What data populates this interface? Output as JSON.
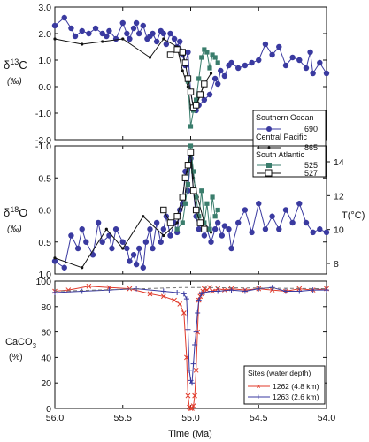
{
  "chart_data": [
    {
      "type": "line",
      "panel": "top",
      "ylabel_prefix": "δ",
      "ylabel_sup": "13",
      "ylabel_suffix": "C",
      "units": "(‰)",
      "ylim": [
        -2.0,
        3.0
      ],
      "yticks": [
        "3.0",
        "2.0",
        "1.0",
        "0.0",
        "-1.0",
        "-2.0"
      ],
      "legend": {
        "groups": [
          {
            "title": "Southern Ocean",
            "entries": [
              {
                "label": "690",
                "series": "690"
              }
            ]
          },
          {
            "title": "Central Pacific",
            "entries": [
              {
                "label": "865",
                "series": "865"
              }
            ]
          },
          {
            "title": "South Atlantic",
            "entries": [
              {
                "label": "525",
                "series": "525"
              },
              {
                "label": "527",
                "series": "527"
              }
            ]
          }
        ],
        "placement": "bottom-right"
      },
      "series": [
        {
          "name": "690",
          "color": "#3a3aa0",
          "marker": "circle",
          "x": [
            56.0,
            55.93,
            55.88,
            55.85,
            55.8,
            55.75,
            55.7,
            55.65,
            55.62,
            55.6,
            55.55,
            55.5,
            55.47,
            55.45,
            55.42,
            55.4,
            55.38,
            55.35,
            55.32,
            55.3,
            55.28,
            55.25,
            55.22,
            55.2,
            55.18,
            55.15,
            55.12,
            55.1,
            55.08,
            55.06,
            55.04,
            55.02,
            55.0,
            54.98,
            54.96,
            54.94,
            54.9,
            54.86,
            54.82,
            54.8,
            54.78,
            54.75,
            54.72,
            54.7,
            54.65,
            54.6,
            54.55,
            54.5,
            54.45,
            54.4,
            54.35,
            54.3,
            54.25,
            54.2,
            54.15,
            54.12,
            54.1,
            54.05,
            54.0
          ],
          "y": [
            2.3,
            2.6,
            2.2,
            1.9,
            2.1,
            2.0,
            2.2,
            2.0,
            1.9,
            2.1,
            1.8,
            2.4,
            2.0,
            1.8,
            2.2,
            2.4,
            2.0,
            2.3,
            1.8,
            1.9,
            2.0,
            1.7,
            2.1,
            2.0,
            1.6,
            2.0,
            1.8,
            1.5,
            1.7,
            1.2,
            0.8,
            1.3,
            -0.2,
            -0.8,
            -0.9,
            -0.7,
            -0.5,
            -0.3,
            0.3,
            0.1,
            0.6,
            0.4,
            0.8,
            0.9,
            0.7,
            0.8,
            0.9,
            1.0,
            1.6,
            1.2,
            1.5,
            0.8,
            1.1,
            1.0,
            0.7,
            1.3,
            0.5,
            0.9,
            0.5
          ]
        },
        {
          "name": "865",
          "color": "#111111",
          "marker": "dot",
          "x": [
            56.0,
            55.8,
            55.65,
            55.5,
            55.3,
            55.2,
            55.1,
            55.06,
            55.02,
            55.0,
            54.98,
            54.95,
            54.9,
            54.85
          ],
          "y": [
            1.8,
            1.6,
            1.7,
            1.8,
            1.1,
            1.8,
            1.5,
            0.6,
            0.0,
            -0.8,
            -0.9,
            -0.6,
            0.1,
            0.5
          ]
        },
        {
          "name": "525",
          "color": "#3a7d6c",
          "marker": "square",
          "x": [
            55.02,
            55.0,
            54.98,
            54.96,
            54.94,
            54.92,
            54.9,
            54.88,
            54.86,
            54.84,
            54.82,
            54.8
          ],
          "y": [
            0.2,
            -1.5,
            -0.9,
            -0.5,
            0.3,
            1.1,
            1.4,
            1.3,
            0.7,
            1.2,
            1.1,
            0.9
          ]
        },
        {
          "name": "527",
          "color": "#111111",
          "marker": "open-square",
          "x": [
            55.15,
            55.1,
            55.06,
            55.04,
            55.02,
            55.0,
            54.98,
            54.96,
            54.93,
            54.9
          ],
          "y": [
            1.2,
            1.4,
            1.3,
            0.9,
            0.3,
            -0.2,
            -0.8,
            -0.7,
            -0.3,
            0.1
          ]
        }
      ]
    },
    {
      "type": "line",
      "panel": "middle",
      "ylabel_prefix": "δ",
      "ylabel_sup": "18",
      "ylabel_suffix": "O",
      "units": "(‰)",
      "ylim": [
        -1.0,
        1.0
      ],
      "y_inverted": true,
      "yticks": [
        "-1.0",
        "-0.5",
        "0.0",
        "0.5",
        "1.0"
      ],
      "right_axis": {
        "label": "T(°C)",
        "ticks": [
          "14",
          "12",
          "10",
          "8"
        ]
      },
      "series": [
        {
          "name": "690",
          "color": "#3a3aa0",
          "marker": "circle",
          "x": [
            56.0,
            55.93,
            55.88,
            55.83,
            55.8,
            55.77,
            55.72,
            55.68,
            55.65,
            55.6,
            55.58,
            55.55,
            55.5,
            55.47,
            55.45,
            55.42,
            55.4,
            55.38,
            55.35,
            55.33,
            55.3,
            55.28,
            55.25,
            55.22,
            55.2,
            55.18,
            55.15,
            55.12,
            55.1,
            55.08,
            55.06,
            55.04,
            55.02,
            55.0,
            54.98,
            54.96,
            54.94,
            54.92,
            54.9,
            54.88,
            54.85,
            54.82,
            54.8,
            54.77,
            54.75,
            54.72,
            54.7,
            54.65,
            54.6,
            54.55,
            54.5,
            54.45,
            54.4,
            54.35,
            54.3,
            54.25,
            54.2,
            54.15,
            54.1,
            54.05,
            54.0
          ],
          "y": [
            0.8,
            0.9,
            0.4,
            0.6,
            0.3,
            0.5,
            0.7,
            0.2,
            0.5,
            0.4,
            0.6,
            0.3,
            0.5,
            0.6,
            0.8,
            0.7,
            0.85,
            0.6,
            0.9,
            0.5,
            0.3,
            0.6,
            0.2,
            0.5,
            0.3,
            0.1,
            0.4,
            0.2,
            0.35,
            0.0,
            -0.1,
            -0.6,
            -0.3,
            -0.8,
            -0.3,
            0.1,
            0.3,
            0.2,
            0.4,
            0.3,
            0.5,
            0.3,
            0.2,
            0.4,
            0.25,
            0.3,
            0.6,
            0.2,
            0.0,
            0.35,
            -0.1,
            0.3,
            0.1,
            0.3,
            0.0,
            0.2,
            -0.1,
            0.2,
            0.35,
            0.3,
            0.35
          ]
        },
        {
          "name": "865",
          "color": "#111111",
          "marker": "dot",
          "x": [
            56.0,
            55.8,
            55.62,
            55.5,
            55.35,
            55.2,
            55.1,
            55.05,
            55.02,
            55.0,
            54.98,
            54.95,
            54.9,
            54.85
          ],
          "y": [
            0.75,
            0.9,
            0.3,
            0.6,
            0.1,
            0.4,
            0.2,
            -0.1,
            -0.6,
            -0.9,
            -0.5,
            -0.2,
            0.2,
            0.35
          ]
        },
        {
          "name": "525",
          "color": "#3a7d6c",
          "marker": "square",
          "x": [
            55.1,
            55.06,
            55.04,
            55.02,
            55.0,
            54.98,
            54.96,
            54.94,
            54.92,
            54.9,
            54.88,
            54.86,
            54.84,
            54.82,
            54.8
          ],
          "y": [
            0.3,
            0.2,
            -0.1,
            -0.4,
            -1.0,
            -0.6,
            -0.2,
            0.1,
            -0.3,
            0.2,
            -0.1,
            0.3,
            -0.2,
            0.1,
            0.0
          ]
        },
        {
          "name": "527",
          "color": "#111111",
          "marker": "open-square",
          "x": [
            55.2,
            55.15,
            55.1,
            55.06,
            55.04,
            55.02,
            55.0,
            54.98,
            54.96,
            54.93,
            54.9
          ],
          "y": [
            0.0,
            0.2,
            0.1,
            -0.2,
            -0.5,
            -0.7,
            -0.9,
            -0.3,
            0.0,
            0.2,
            0.3
          ]
        }
      ]
    },
    {
      "type": "line",
      "panel": "bottom",
      "ylabel_line1": "CaCO",
      "ylabel_sub": "3",
      "units": "(%)",
      "ylim": [
        0,
        100
      ],
      "yticks": [
        "100",
        "80",
        "60",
        "40",
        "20",
        "0"
      ],
      "xlabel": "Time (Ma)",
      "xlim": [
        56.0,
        54.0
      ],
      "xticks": [
        "56.0",
        "55.5",
        "55.0",
        "54.5",
        "54.0"
      ],
      "legend": {
        "title": "Sites (water depth)",
        "entries": [
          {
            "label": "1262 (4.8 km)",
            "series": "1262"
          },
          {
            "label": "1263 (2.6 km)",
            "series": "1263"
          }
        ],
        "placement": "bottom-right"
      },
      "series": [
        {
          "name": "1262",
          "color": "#e03a2a",
          "marker": "x",
          "x": [
            56.0,
            55.9,
            55.75,
            55.6,
            55.45,
            55.3,
            55.2,
            55.12,
            55.08,
            55.05,
            55.03,
            55.02,
            55.01,
            55.0,
            54.99,
            54.98,
            54.97,
            54.96,
            54.95,
            54.94,
            54.93,
            54.92,
            54.91,
            54.9,
            54.88,
            54.86,
            54.84,
            54.8,
            54.75,
            54.7,
            54.6,
            54.5,
            54.4,
            54.3,
            54.2,
            54.1,
            54.0
          ],
          "y": [
            92,
            93,
            96,
            95,
            94,
            90,
            88,
            85,
            82,
            75,
            40,
            10,
            1,
            0,
            0,
            2,
            10,
            30,
            60,
            85,
            88,
            90,
            92,
            94,
            93,
            95,
            92,
            94,
            93,
            94,
            93,
            94,
            93,
            92,
            94,
            93,
            94
          ]
        },
        {
          "name": "1263",
          "color": "#3a3aa0",
          "marker": "plus",
          "x": [
            56.0,
            55.8,
            55.6,
            55.4,
            55.2,
            55.1,
            55.05,
            55.03,
            55.02,
            55.01,
            55.0,
            54.99,
            54.98,
            54.97,
            54.96,
            54.95,
            54.94,
            54.92,
            54.9,
            54.85,
            54.8,
            54.7,
            54.6,
            54.5,
            54.4,
            54.3,
            54.2,
            54.1,
            54.0
          ],
          "y": [
            91,
            92,
            93,
            94,
            92,
            91,
            90,
            86,
            62,
            30,
            22,
            20,
            35,
            50,
            60,
            75,
            85,
            90,
            91,
            92,
            92,
            93,
            92,
            94,
            95,
            92,
            92,
            93,
            93
          ]
        },
        {
          "name": "dashed",
          "color": "#777777",
          "marker": "none",
          "x": [
            56.0,
            55.05,
            54.95,
            54.0
          ],
          "y": [
            92,
            95,
            95,
            94
          ]
        }
      ]
    }
  ]
}
